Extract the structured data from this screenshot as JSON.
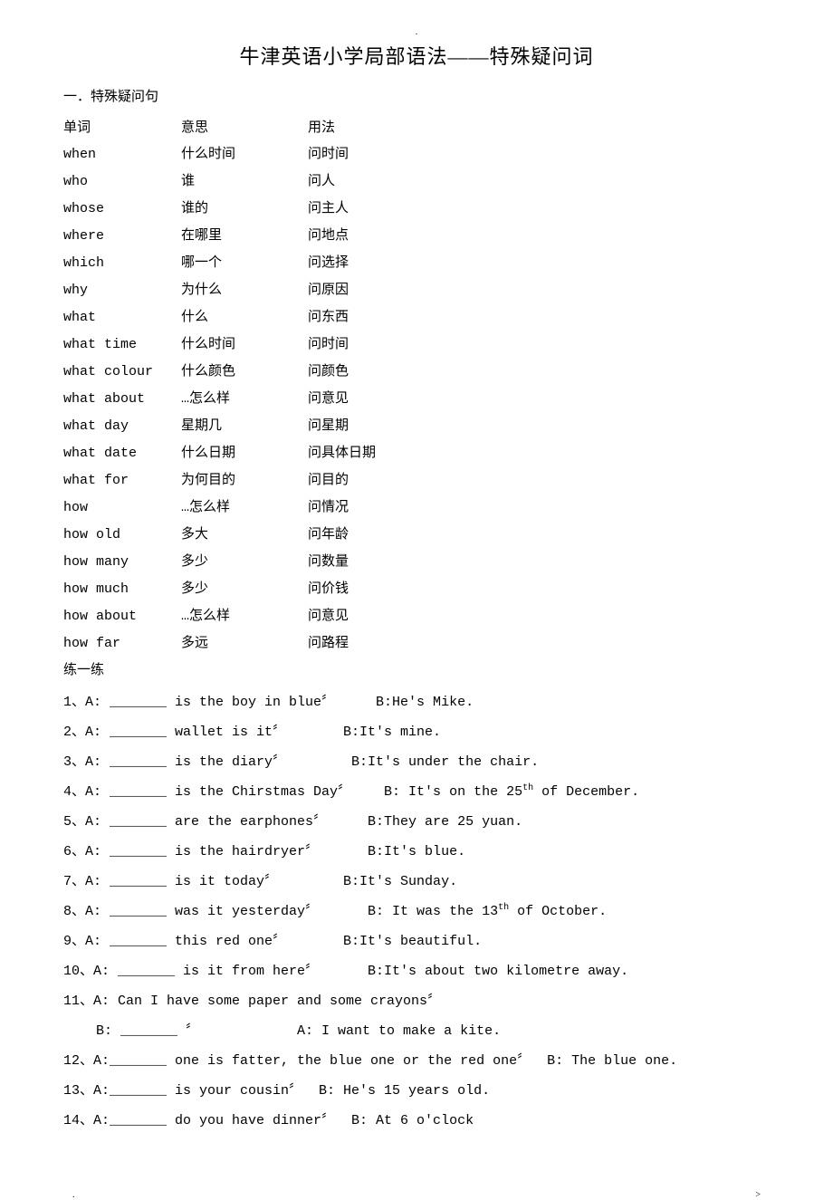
{
  "title": "牛津英语小学局部语法——特殊疑问词",
  "section_heading": "一．特殊疑问句",
  "table_header": {
    "c1": "单词",
    "c2": "意思",
    "c3": "用法"
  },
  "vocab": [
    {
      "word": "when",
      "meaning": "什么时间",
      "usage": "问时间"
    },
    {
      "word": "who",
      "meaning": "谁",
      "usage": "问人"
    },
    {
      "word": "whose",
      "meaning": "谁的",
      "usage": "问主人"
    },
    {
      "word": "where",
      "meaning": "在哪里",
      "usage": "问地点"
    },
    {
      "word": "which",
      "meaning": "哪一个",
      "usage": "问选择"
    },
    {
      "word": "why",
      "meaning": "为什么",
      "usage": "问原因"
    },
    {
      "word": "what",
      "meaning": "什么",
      "usage": "问东西"
    },
    {
      "word": "what time",
      "meaning": "什么时间",
      "usage": "问时间"
    },
    {
      "word": "what colour",
      "meaning": "什么颜色",
      "usage": "问颜色"
    },
    {
      "word": "what about",
      "meaning": "…怎么样",
      "usage": "问意见"
    },
    {
      "word": "what day",
      "meaning": "星期几",
      "usage": "问星期"
    },
    {
      "word": "what date",
      "meaning": "什么日期",
      "usage": "问具体日期"
    },
    {
      "word": "what for",
      "meaning": "为何目的",
      "usage": "问目的"
    },
    {
      "word": "how",
      "meaning": "…怎么样",
      "usage": "问情况"
    },
    {
      "word": "how old",
      "meaning": "多大",
      "usage": "问年龄"
    },
    {
      "word": "how many",
      "meaning": "多少",
      "usage": "问数量"
    },
    {
      "word": "how much",
      "meaning": "多少",
      "usage": "问价钱"
    },
    {
      "word": "how about",
      "meaning": "…怎么样",
      "usage": "问意见"
    },
    {
      "word": "how far",
      "meaning": "多远",
      "usage": "问路程"
    }
  ],
  "practice_label": "练一练",
  "exercises": [
    "1、A: _______ is the boy in blue〞     B:He's Mike.",
    "2、A: _______ wallet is it〞       B:It's mine.",
    "3、A: _______ is the diary〞        B:It's under the chair.",
    "4、A: _______ is the Chirstmas Day〞    B: It's on the 25ᵗʰ of December.",
    "5、A: _______ are the earphones〞     B:They are 25 yuan.",
    "6、A: _______ is the hairdryer〞      B:It's blue.",
    "7、A: _______ is it today〞        B:It's Sunday.",
    "8、A: _______ was it yesterday〞      B: It was the 13ᵗʰ of October.",
    "9、A: _______ this red one〞       B:It's beautiful.",
    "10、A: _______ is it from here〞      B:It's about two kilometre away.",
    "11、A: Can I have some paper and some crayons〞",
    "    B: _______ 〞            A: I want to make a kite.",
    "12、A:_______ one is fatter, the blue one or the red one〞  B: The blue one.",
    "13、A:_______ is your cousin〞  B: He's 15 years old.",
    "14、A:_______ do you have dinner〞  B: At 6 o'clock"
  ],
  "footer_left": ".",
  "footer_right": ">",
  "top_dot": "."
}
